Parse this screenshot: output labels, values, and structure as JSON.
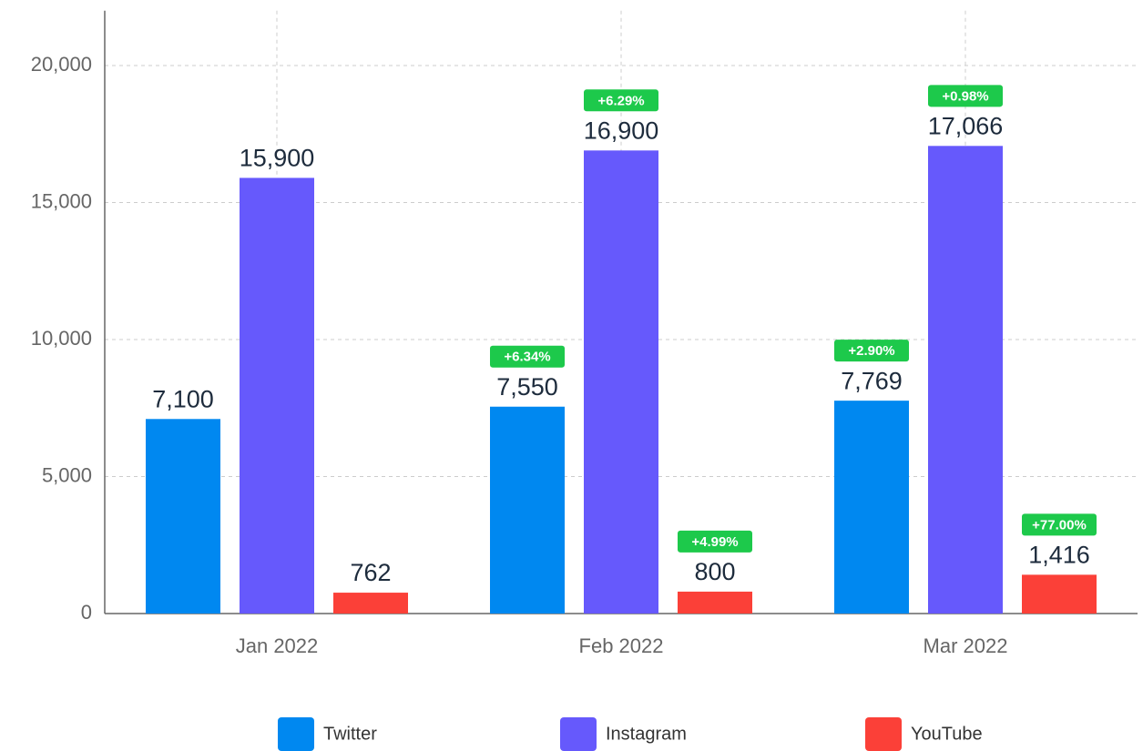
{
  "chart_data": {
    "type": "bar",
    "categories": [
      "Jan 2022",
      "Feb 2022",
      "Mar 2022"
    ],
    "series": [
      {
        "name": "Twitter",
        "color": "#0088f0",
        "values": [
          7100,
          7550,
          7769
        ],
        "value_labels": [
          "7,100",
          "7,550",
          "7,769"
        ],
        "changes": [
          null,
          6.34,
          2.9
        ],
        "change_labels": [
          null,
          "+6.34%",
          "+2.90%"
        ]
      },
      {
        "name": "Instagram",
        "color": "#6659fc",
        "values": [
          15900,
          16900,
          17066
        ],
        "value_labels": [
          "15,900",
          "16,900",
          "17,066"
        ],
        "changes": [
          null,
          6.29,
          0.98
        ],
        "change_labels": [
          null,
          "+6.29%",
          "+0.98%"
        ]
      },
      {
        "name": "YouTube",
        "color": "#fb4038",
        "values": [
          762,
          800,
          1416
        ],
        "value_labels": [
          "762",
          "800",
          "1,416"
        ],
        "changes": [
          null,
          4.99,
          77.0
        ],
        "change_labels": [
          null,
          "+4.99%",
          "+77.00%"
        ]
      }
    ],
    "ylim": [
      0,
      22000
    ],
    "yticks": [
      0,
      {
        "value": 5000,
        "label": "5,000"
      },
      {
        "value": 10000,
        "label": "10,000"
      },
      {
        "value": 15000,
        "label": "15,000"
      },
      {
        "value": 20000,
        "label": "20,000"
      }
    ],
    "grid": true,
    "legend": "bottom",
    "badge_color": "#1dc94b"
  }
}
